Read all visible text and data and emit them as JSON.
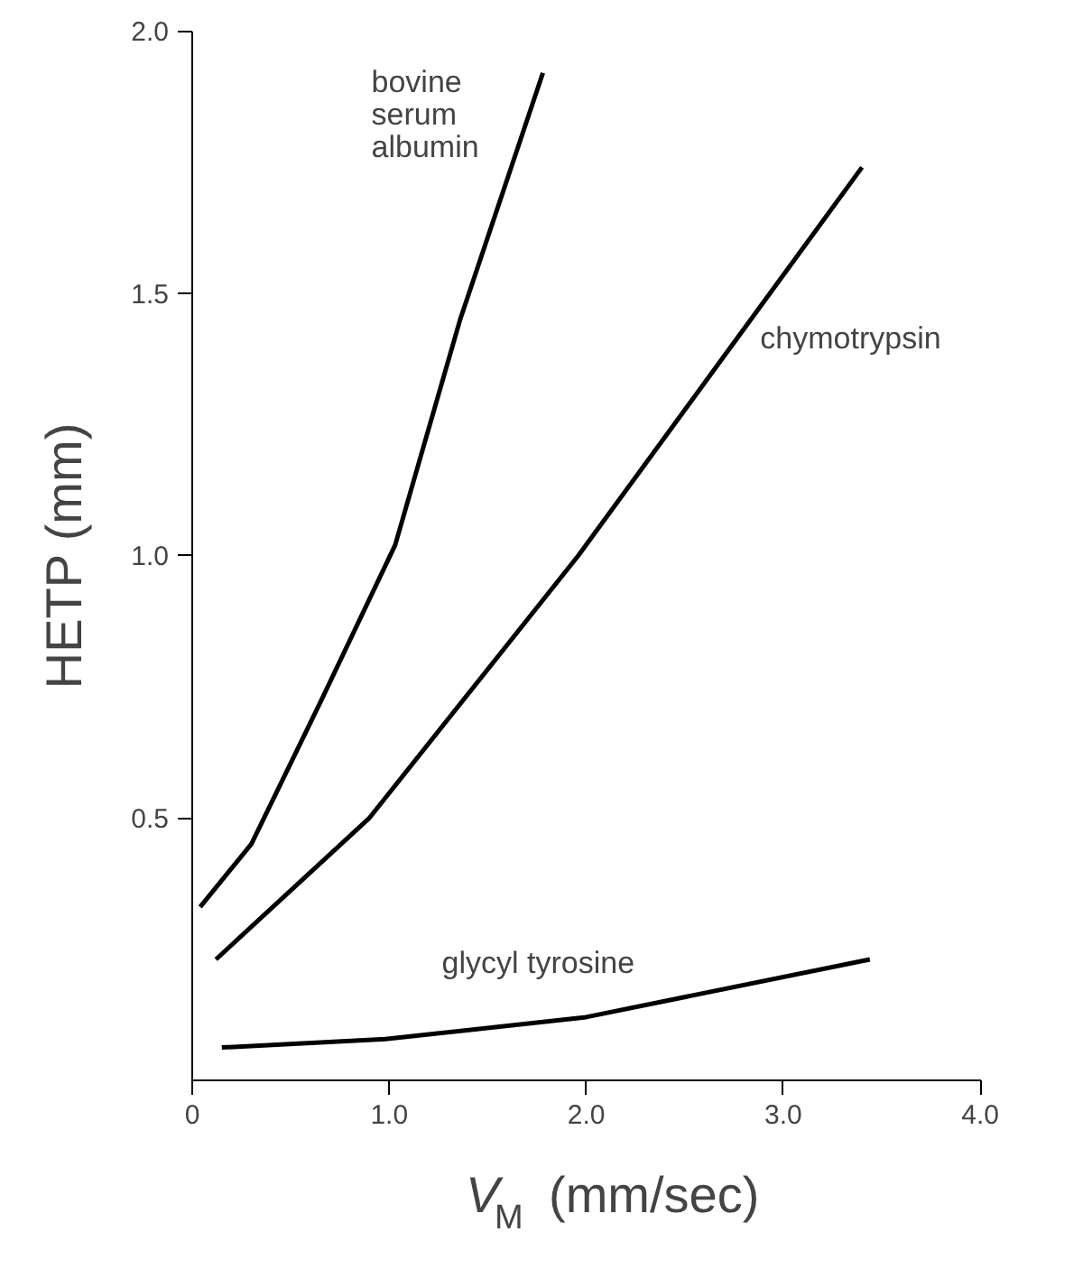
{
  "chart_data": {
    "type": "line",
    "xlabel": "V$_{M}$ (mm/sec)",
    "ylabel": "HETP (mm)",
    "xlim": [
      0,
      4.0
    ],
    "ylim": [
      0,
      2.0
    ],
    "xticks": [
      {
        "value": 0,
        "label": "0"
      },
      {
        "value": 1.0,
        "label": "1.0"
      },
      {
        "value": 2.0,
        "label": "2.0"
      },
      {
        "value": 3.0,
        "label": "3.0"
      },
      {
        "value": 4.0,
        "label": "4.0"
      }
    ],
    "yticks": [
      {
        "value": 0.5,
        "label": "0.5"
      },
      {
        "value": 1.0,
        "label": "1.0"
      },
      {
        "value": 1.5,
        "label": "1.5"
      },
      {
        "value": 2.0,
        "label": "2.0"
      }
    ],
    "grid": false,
    "legend": false,
    "marker": "none",
    "line_style": "solid",
    "series": [
      {
        "name": "bovine\nserum\nalbumin",
        "color": "#000000",
        "x": [
          0.04,
          0.3,
          0.65,
          1.03,
          1.36,
          1.78
        ],
        "values": [
          0.33,
          0.45,
          0.72,
          1.02,
          1.45,
          1.92
        ]
      },
      {
        "name": "chymotrypsin",
        "color": "#000000",
        "x": [
          0.12,
          0.9,
          1.96,
          2.7,
          3.4
        ],
        "values": [
          0.23,
          0.5,
          1.0,
          1.38,
          1.74
        ]
      },
      {
        "name": "glycyl tyrosine",
        "color": "#000000",
        "x": [
          0.15,
          0.98,
          2.0,
          3.44
        ],
        "values": [
          0.062,
          0.078,
          0.12,
          0.23
        ]
      }
    ]
  }
}
